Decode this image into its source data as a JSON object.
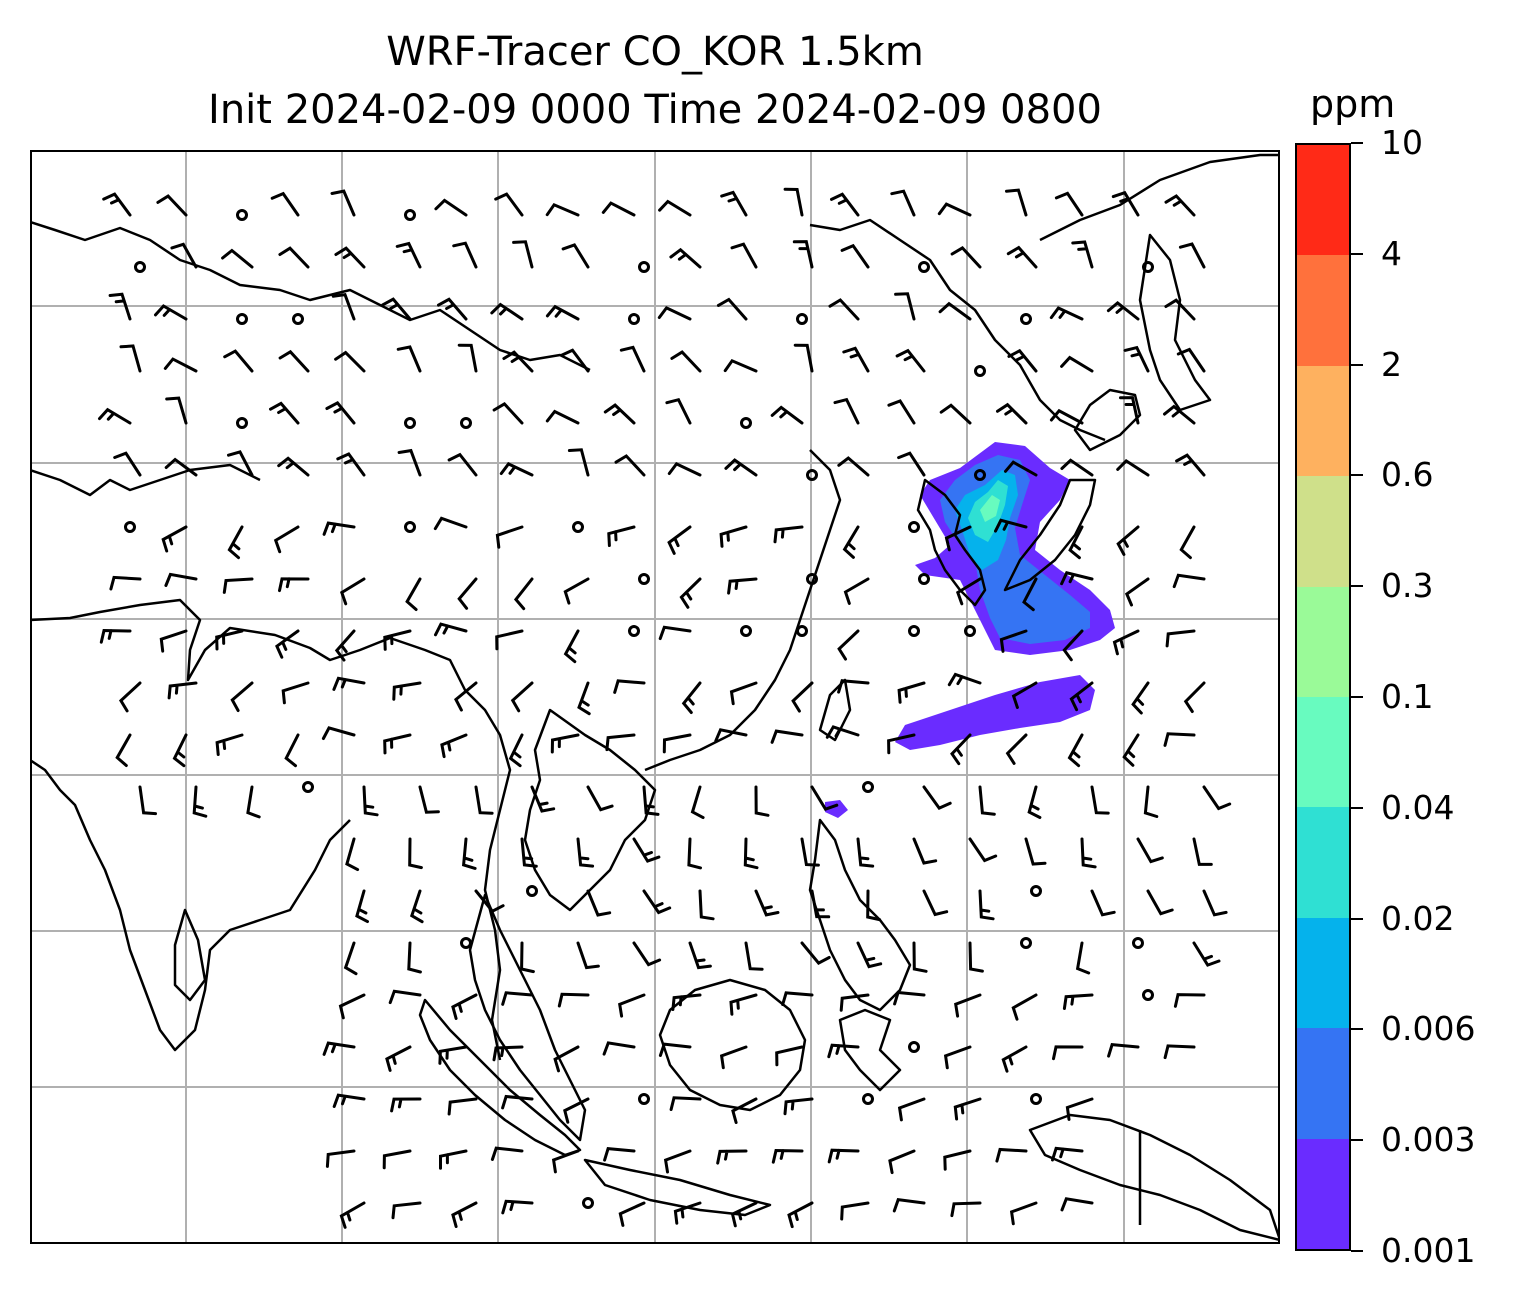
{
  "title": {
    "line1": "WRF-Tracer CO_KOR 1.5km",
    "line2": "Init 2024-02-09 0000 Time 2024-02-09 0800"
  },
  "colorbar": {
    "unit": "ppm",
    "tick_labels": [
      "0.001",
      "0.003",
      "0.006",
      "0.02",
      "0.04",
      "0.1",
      "0.3",
      "0.6",
      "2",
      "4",
      "10"
    ],
    "colors": [
      "#6a2cff",
      "#3574f3",
      "#05b2ec",
      "#2fe0d3",
      "#68fbbf",
      "#9afa98",
      "#cfe08a",
      "#feb15f",
      "#ff713c",
      "#ff2a17"
    ]
  },
  "map": {
    "gridlines": true,
    "wind_barbs": true,
    "plume_levels_present": [
      "0.001",
      "0.003",
      "0.006",
      "0.02",
      "0.04"
    ]
  }
}
